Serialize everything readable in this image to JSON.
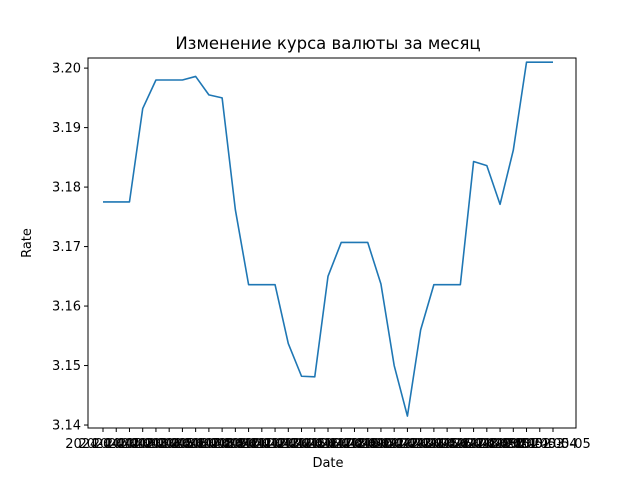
{
  "chart_data": {
    "type": "line",
    "title": "Изменение курса валюты за месяц",
    "xlabel": "Date",
    "ylabel": "Rate",
    "ylim": [
      3.1395,
      3.2017
    ],
    "grid": false,
    "legend": "none",
    "x_tick_labels_overlap": true,
    "yticks": [
      "3.14",
      "3.15",
      "3.16",
      "3.17",
      "3.18",
      "3.19",
      "3.20"
    ],
    "ytick_values": [
      3.14,
      3.15,
      3.16,
      3.17,
      3.18,
      3.19,
      3.2
    ],
    "x": [
      "2024-04-01",
      "2024-04-02",
      "2024-04-03",
      "2024-04-04",
      "2024-04-05",
      "2024-04-06",
      "2024-04-07",
      "2024-04-08",
      "2024-04-09",
      "2024-04-10",
      "2024-04-11",
      "2024-04-12",
      "2024-04-13",
      "2024-04-14",
      "2024-04-15",
      "2024-04-16",
      "2024-04-17",
      "2024-04-18",
      "2024-04-19",
      "2024-04-20",
      "2024-04-21",
      "2024-04-22",
      "2024-04-23",
      "2024-04-24",
      "2024-04-25",
      "2024-04-26",
      "2024-04-27",
      "2024-04-28",
      "2024-04-29",
      "2024-04-30",
      "2024-05-01",
      "2024-05-02",
      "2024-05-03",
      "2024-05-04",
      "2024-05-05"
    ],
    "series": [
      {
        "color": "#1f77b4",
        "values": [
          3.1775,
          3.1775,
          3.1775,
          3.1932,
          3.198,
          3.198,
          3.198,
          3.1986,
          3.1955,
          3.195,
          3.1762,
          3.1636,
          3.1636,
          3.1636,
          3.1537,
          3.1482,
          3.1481,
          3.165,
          3.1707,
          3.1707,
          3.1707,
          3.1637,
          3.15,
          3.1415,
          3.156,
          3.1636,
          3.1636,
          3.1636,
          3.1843,
          3.1836,
          3.1771,
          3.1862,
          3.201,
          3.201,
          3.201
        ]
      }
    ]
  }
}
